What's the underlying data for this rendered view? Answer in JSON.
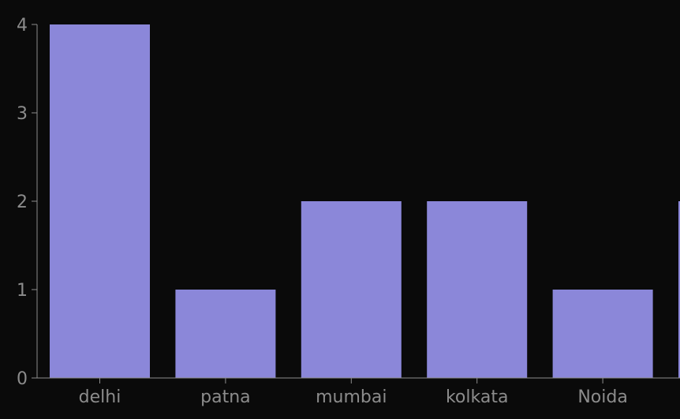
{
  "chart_data": {
    "type": "bar",
    "categories": [
      "delhi",
      "patna",
      "mumbai",
      "kolkata",
      "Noida",
      ""
    ],
    "values": [
      4,
      1,
      2,
      2,
      1,
      2
    ],
    "title": "",
    "xlabel": "",
    "ylabel": "",
    "ylim": [
      0,
      4
    ],
    "yticks": [
      0,
      1,
      2,
      3,
      4
    ],
    "grid": false
  },
  "colors": {
    "background": "#0a0a0a",
    "bar": "#8b87d9",
    "axis": "#8c8c8c",
    "tick_text": "#8c8c8c"
  }
}
